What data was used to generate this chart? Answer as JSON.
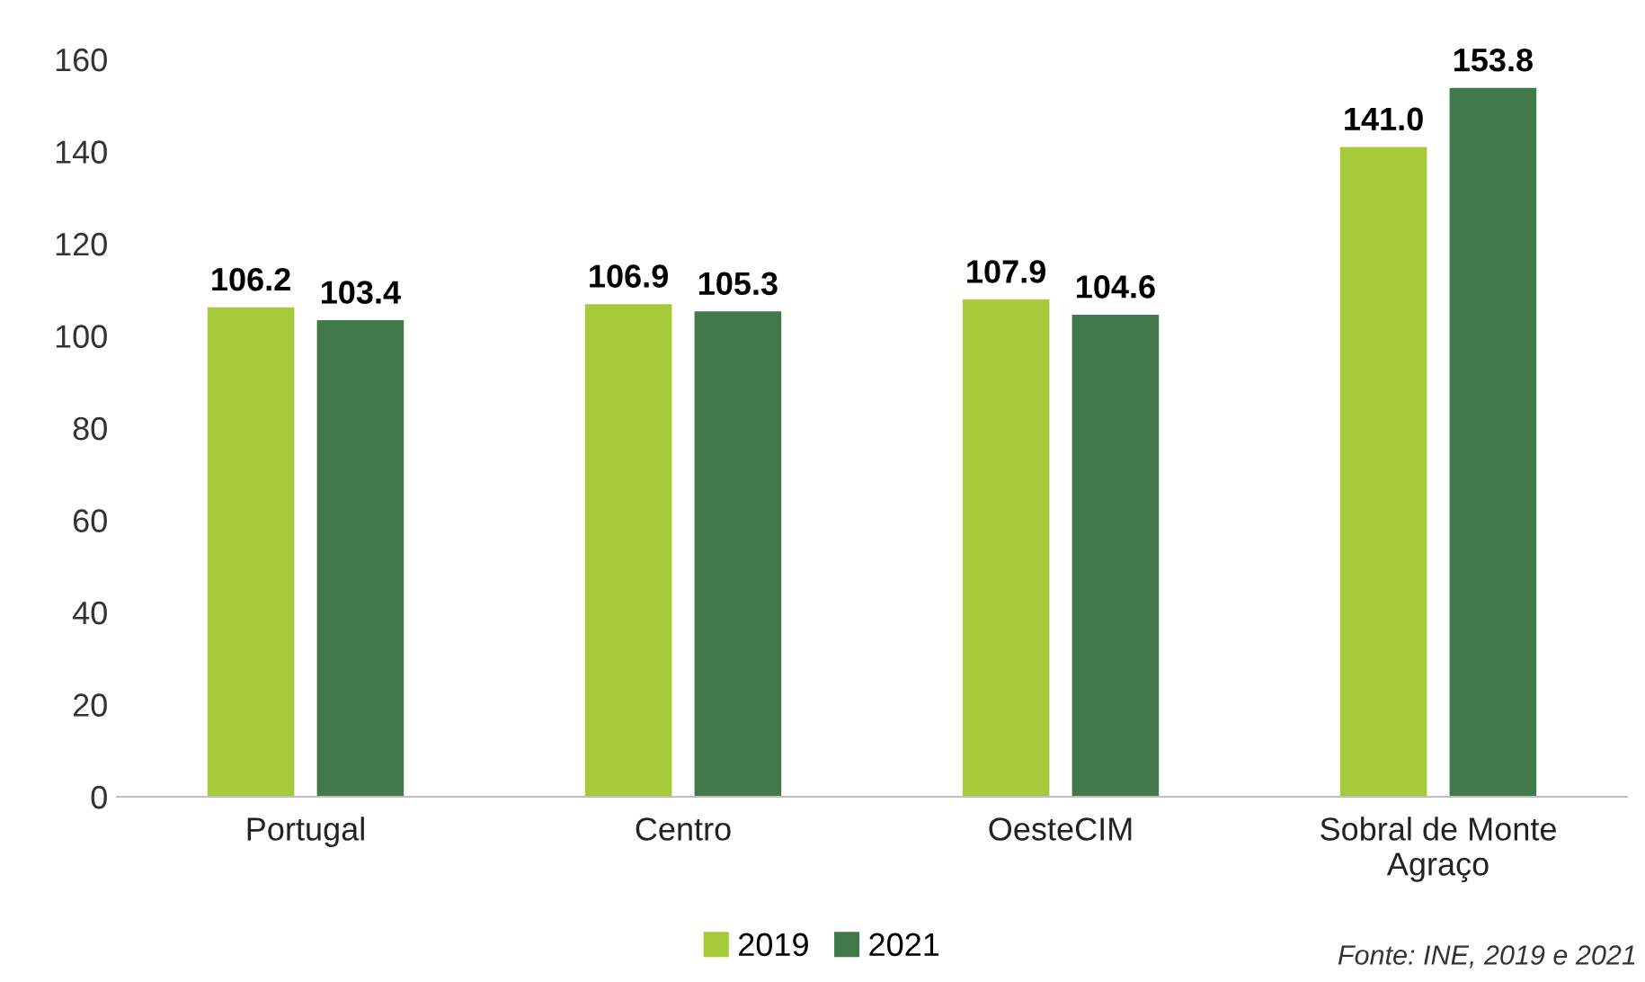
{
  "chart_data": {
    "type": "bar",
    "categories": [
      "Portugal",
      "Centro",
      "OesteCIM",
      "Sobral de Monte\nAgraço"
    ],
    "series": [
      {
        "name": "2019",
        "color": "#a6ca3a",
        "values": [
          106.2,
          106.9,
          107.9,
          141.0
        ],
        "value_labels": [
          "106.2",
          "106.9",
          "107.9",
          "141.0"
        ]
      },
      {
        "name": "2021",
        "color": "#41794a",
        "values": [
          103.4,
          105.3,
          104.6,
          153.8
        ],
        "value_labels": [
          "103.4",
          "105.3",
          "104.6",
          "153.8"
        ]
      }
    ],
    "ylim": [
      0,
      160
    ],
    "yticks": [
      0,
      20,
      40,
      60,
      80,
      100,
      120,
      140,
      160
    ],
    "grid": false,
    "legend": "bottom",
    "annotations": [
      "Fonte: INE, 2019 e 2021"
    ]
  }
}
